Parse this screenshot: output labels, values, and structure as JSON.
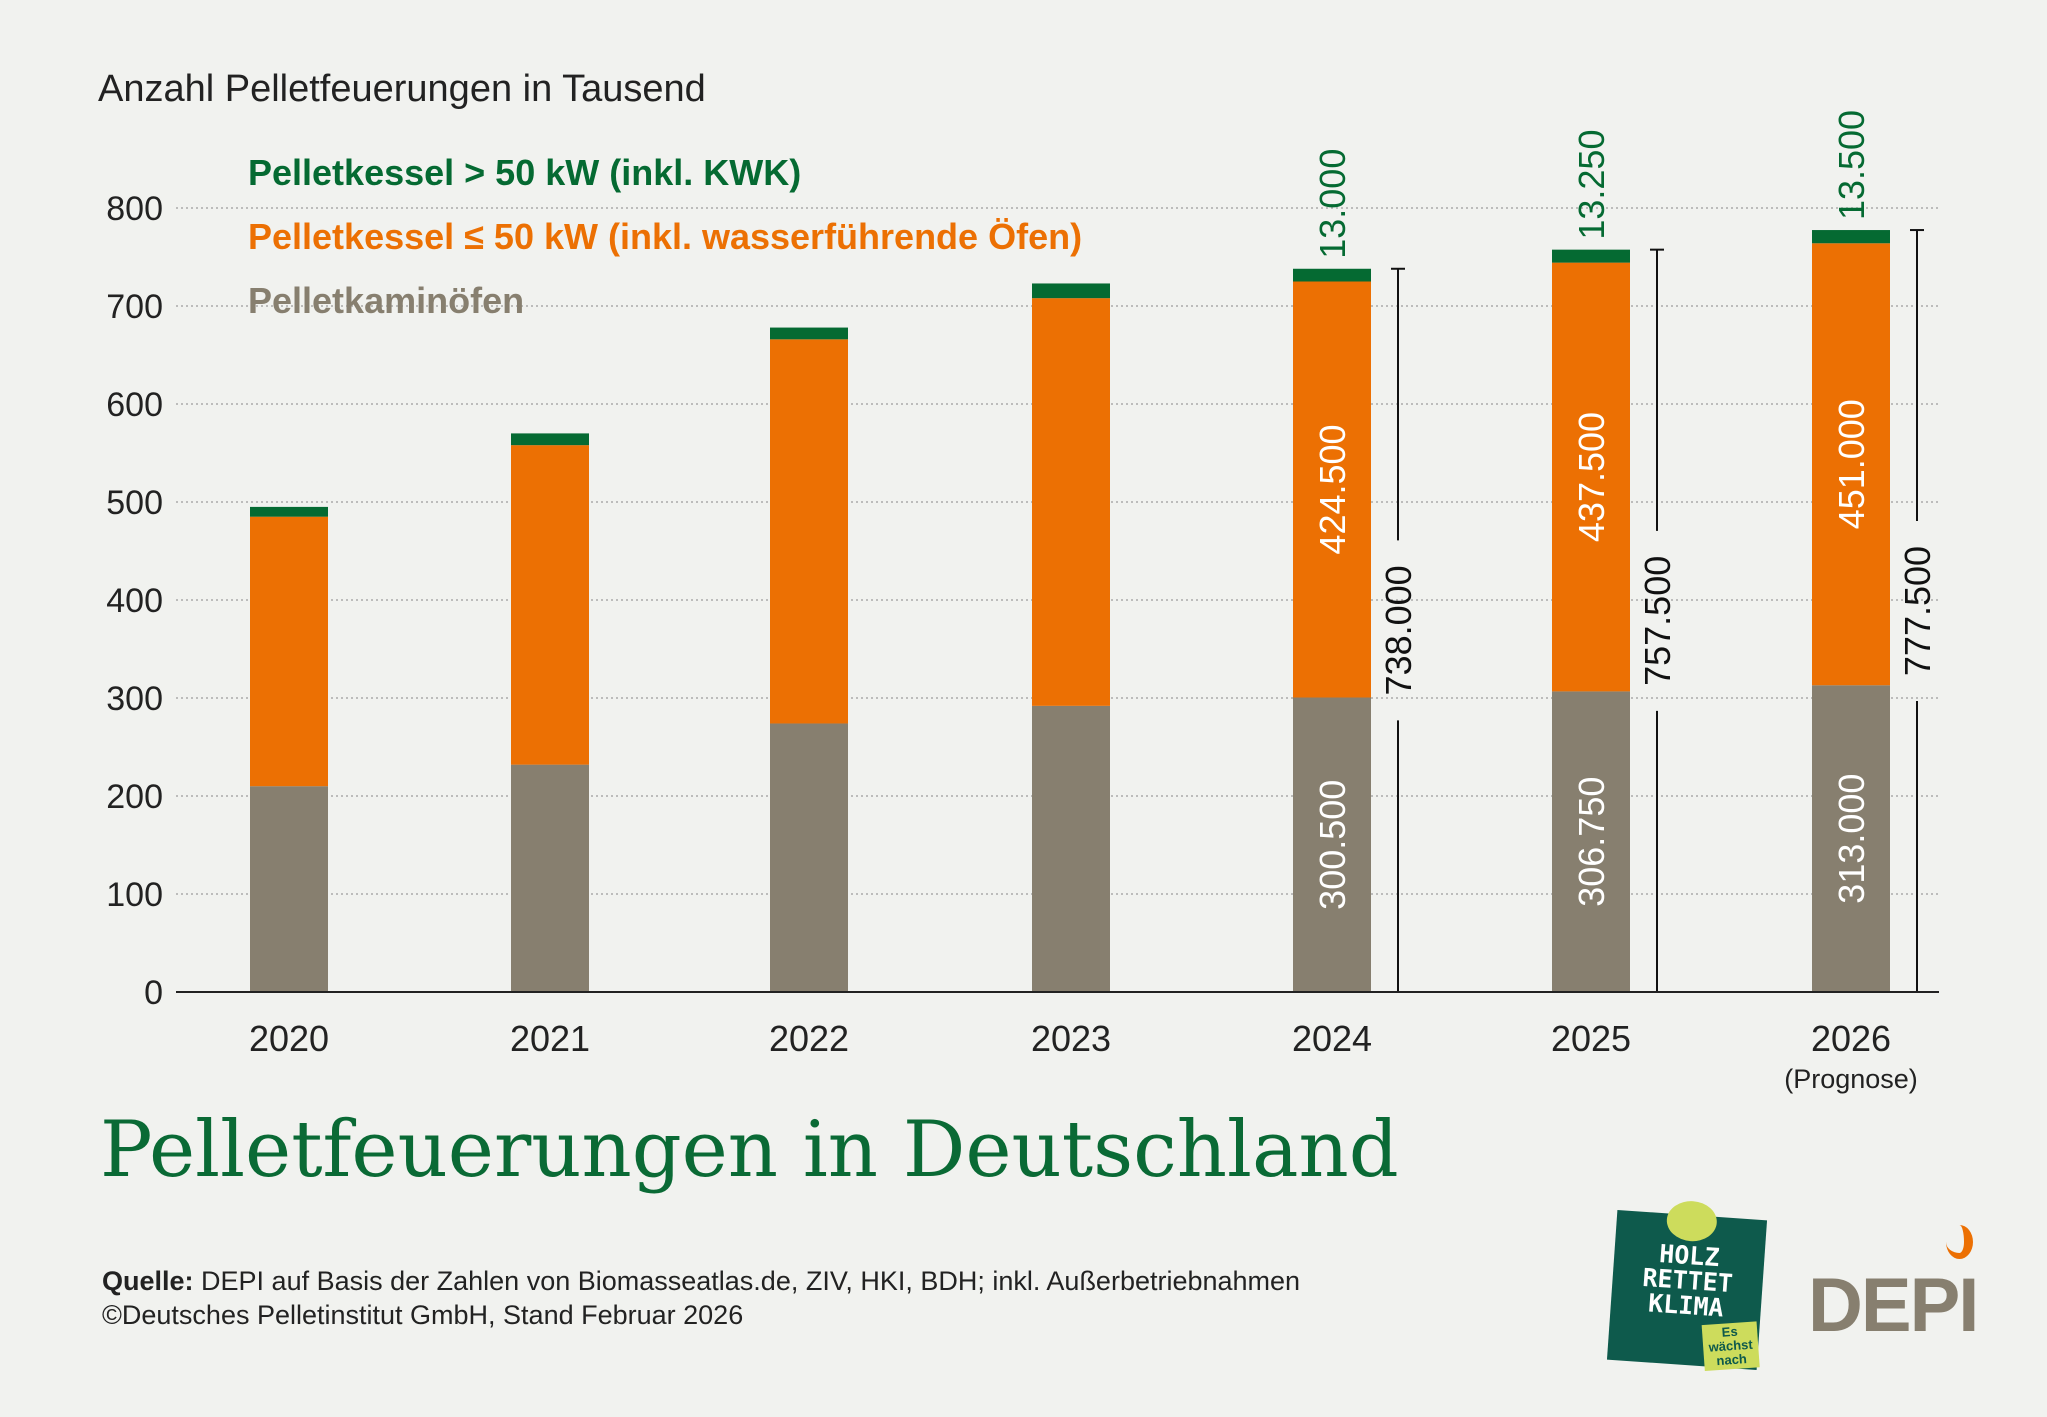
{
  "chart_data": {
    "type": "bar",
    "stacked": true,
    "title": "Pelletfeuerungen in Deutschland",
    "ylabel": "Anzahl Pelletfeuerungen in Tausend",
    "xlabel": "",
    "ylim": [
      0,
      800
    ],
    "yticks": [
      "0",
      "100",
      "200",
      "300",
      "400",
      "500",
      "600",
      "700",
      "800"
    ],
    "grid": true,
    "legend_position": "top-left",
    "categories": [
      "2020",
      "2021",
      "2022",
      "2023",
      "2024",
      "2025",
      "2026"
    ],
    "category_sublabels": {
      "2026": "(Prognose)"
    },
    "series": [
      {
        "name": "Pelletkaminöfen",
        "color": "#877f6f",
        "values": [
          210,
          232,
          274,
          292,
          300.5,
          306.75,
          313
        ]
      },
      {
        "name": "Pelletkessel ≤ 50 kW (inkl. wasserführende Öfen)",
        "color": "#ec7003",
        "values": [
          275,
          326,
          392,
          416,
          424.5,
          437.5,
          451
        ]
      },
      {
        "name": "Pelletkessel > 50 kW (inkl. KWK)",
        "color": "#056a32",
        "values": [
          10,
          12,
          12,
          15,
          13,
          13.25,
          13.5
        ]
      }
    ],
    "data_labels": {
      "2024": {
        "kaminoefen": "300.500",
        "kessel_klein": "424.500",
        "kessel_gross": "13.000",
        "total": "738.000"
      },
      "2025": {
        "kaminoefen": "306.750",
        "kessel_klein": "437.500",
        "kessel_gross": "13.250",
        "total": "757.500"
      },
      "2026": {
        "kaminoefen": "313.000",
        "kessel_klein": "451.000",
        "kessel_gross": "13.500",
        "total": "777.500"
      }
    }
  },
  "legend": {
    "gross": "Pelletkessel > 50 kW (inkl. KWK)",
    "klein": "Pelletkessel ≤ 50 kW (inkl. wasserführende Öfen)",
    "ofen": "Pelletkaminöfen"
  },
  "source": {
    "label": "Quelle:",
    "text": " DEPI auf Basis der Zahlen von Biomasseatlas.de, ZIV, HKI, BDH; inkl. Außerbetriebnahmen",
    "copyright": "©Deutsches Pelletinstitut GmbH, Stand Februar 2026"
  },
  "logos": {
    "holz": "HOLZ RETTET KLIMA",
    "holz_tag": "Es wächst nach",
    "depi": "DEPI"
  }
}
